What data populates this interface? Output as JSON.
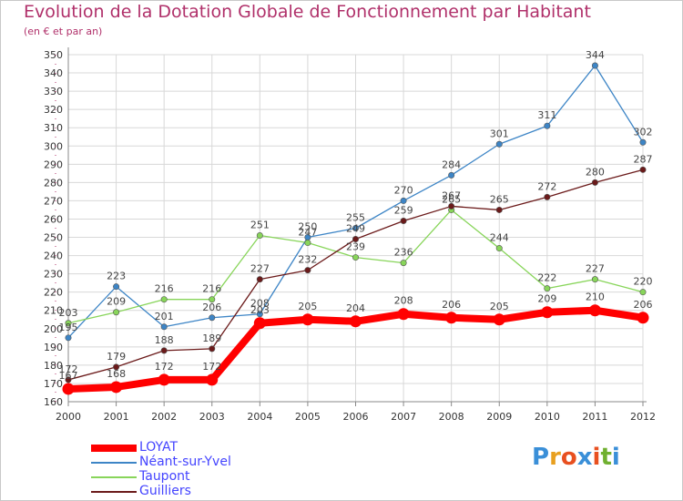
{
  "header": {
    "title": "Evolution de la Dotation Globale de Fonctionnement par Habitant",
    "subtitle": "(en € et par an)"
  },
  "brand": {
    "text": "Proxiti",
    "letters": [
      "P",
      "r",
      "o",
      "x",
      "i",
      "t",
      "i"
    ],
    "colors": [
      "#3a8fd8",
      "#e8a020",
      "#e85020",
      "#3a8fd8",
      "#e85020",
      "#70b030",
      "#3a8fd8"
    ]
  },
  "colors": {
    "axis": "#888888",
    "grid": "#d8d8d8",
    "tick_text": "#333333",
    "label_text": "#444444",
    "accent": "#b0306a"
  },
  "chart_data": {
    "type": "line",
    "title": "Evolution de la Dotation Globale de Fonctionnement par Habitant",
    "subtitle": "(en € et par an)",
    "xlabel": "",
    "ylabel": "",
    "x": [
      2000,
      2001,
      2002,
      2003,
      2004,
      2005,
      2006,
      2007,
      2008,
      2009,
      2010,
      2011,
      2012
    ],
    "ylim": [
      160,
      350
    ],
    "yticks": [
      160,
      170,
      180,
      190,
      200,
      210,
      220,
      230,
      240,
      250,
      260,
      270,
      280,
      290,
      300,
      310,
      320,
      330,
      340,
      350
    ],
    "grid": true,
    "legend_position": "bottom-left",
    "series": [
      {
        "name": "LOYAT",
        "color": "#ff0000",
        "values": [
          167,
          168,
          172,
          172,
          203,
          205,
          204,
          208,
          206,
          205,
          209,
          210,
          206
        ]
      },
      {
        "name": "Néant-sur-Yvel",
        "color": "#3d85c6",
        "values": [
          195,
          223,
          201,
          206,
          208,
          250,
          255,
          270,
          284,
          301,
          311,
          344,
          302
        ]
      },
      {
        "name": "Taupont",
        "color": "#88d55a",
        "values": [
          203,
          209,
          216,
          216,
          251,
          247,
          239,
          236,
          265,
          244,
          222,
          227,
          220
        ]
      },
      {
        "name": "Guilliers",
        "color": "#6b1a1a",
        "values": [
          172,
          179,
          188,
          189,
          227,
          232,
          249,
          259,
          267,
          265,
          272,
          280,
          287
        ]
      }
    ]
  }
}
